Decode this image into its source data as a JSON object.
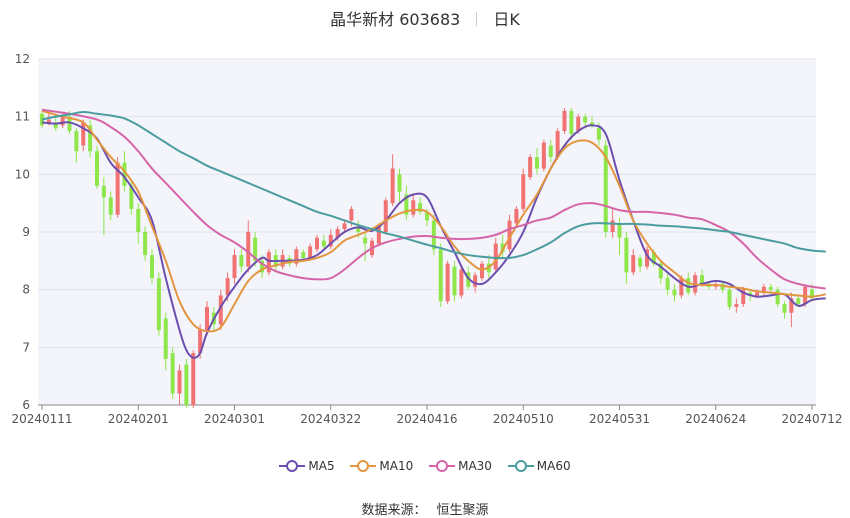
{
  "header": {
    "name": "晶华新材 603683",
    "period": "日K"
  },
  "source": {
    "label": "数据来源：",
    "value": "恒生聚源"
  },
  "colors": {
    "up": "#f07272",
    "down": "#8ee64a",
    "ma5": "#6c4eae",
    "ma10": "#e39640",
    "ma30": "#d664a8",
    "ma60": "#4b9c9e"
  },
  "chart_data": {
    "type": "candlestick",
    "title": "晶华新材 603683",
    "ylim": [
      6,
      12
    ],
    "yticks": [
      "6",
      "7",
      "8",
      "9",
      "10",
      "11",
      "12"
    ],
    "xticks": [
      {
        "label": "20240111",
        "index": 0
      },
      {
        "label": "20240201",
        "index": 14
      },
      {
        "label": "20240301",
        "index": 28
      },
      {
        "label": "20240322",
        "index": 42
      },
      {
        "label": "20240416",
        "index": 56
      },
      {
        "label": "20240510",
        "index": 70
      },
      {
        "label": "20240531",
        "index": 84
      },
      {
        "label": "20240624",
        "index": 98
      },
      {
        "label": "20240712",
        "index": 112
      }
    ],
    "legend": [
      {
        "key": "ma5",
        "label": "MA5"
      },
      {
        "key": "ma10",
        "label": "MA10"
      },
      {
        "key": "ma30",
        "label": "MA30"
      },
      {
        "key": "ma60",
        "label": "MA60"
      }
    ],
    "ohlc": [
      [
        11.05,
        10.85,
        11.1,
        10.8
      ],
      [
        10.9,
        10.95,
        11.05,
        10.85
      ],
      [
        10.9,
        10.8,
        11.0,
        10.75
      ],
      [
        10.85,
        11.0,
        11.05,
        10.8
      ],
      [
        11.0,
        10.75,
        11.1,
        10.7
      ],
      [
        10.75,
        10.4,
        10.8,
        10.2
      ],
      [
        10.5,
        10.9,
        10.95,
        10.4
      ],
      [
        10.85,
        10.4,
        10.95,
        10.3
      ],
      [
        10.4,
        9.8,
        10.5,
        9.75
      ],
      [
        9.8,
        9.6,
        9.95,
        8.95
      ],
      [
        9.6,
        9.3,
        9.7,
        9.2
      ],
      [
        9.3,
        10.2,
        10.3,
        9.25
      ],
      [
        10.2,
        9.8,
        10.4,
        9.7
      ],
      [
        9.8,
        9.4,
        9.9,
        9.3
      ],
      [
        9.4,
        9.0,
        9.5,
        8.8
      ],
      [
        9.0,
        8.6,
        9.1,
        8.5
      ],
      [
        8.6,
        8.2,
        8.7,
        8.1
      ],
      [
        8.2,
        7.3,
        8.3,
        7.2
      ],
      [
        7.5,
        6.8,
        7.6,
        6.6
      ],
      [
        6.9,
        6.2,
        7.0,
        6.1
      ],
      [
        6.2,
        6.6,
        6.7,
        6.0
      ],
      [
        6.7,
        6.0,
        6.8,
        5.95
      ],
      [
        6.0,
        6.9,
        6.95,
        5.95
      ],
      [
        6.9,
        7.3,
        7.4,
        6.8
      ],
      [
        7.3,
        7.7,
        7.8,
        7.2
      ],
      [
        7.6,
        7.4,
        7.7,
        7.3
      ],
      [
        7.4,
        7.9,
        8.0,
        7.3
      ],
      [
        7.9,
        8.2,
        8.3,
        7.8
      ],
      [
        8.2,
        8.6,
        8.7,
        8.1
      ],
      [
        8.6,
        8.4,
        8.7,
        8.3
      ],
      [
        8.4,
        9.0,
        9.2,
        8.3
      ],
      [
        8.9,
        8.5,
        9.0,
        8.4
      ],
      [
        8.5,
        8.3,
        8.6,
        8.2
      ],
      [
        8.3,
        8.65,
        8.7,
        8.25
      ],
      [
        8.6,
        8.4,
        8.7,
        8.3
      ],
      [
        8.4,
        8.6,
        8.7,
        8.35
      ],
      [
        8.55,
        8.45,
        8.6,
        8.4
      ],
      [
        8.45,
        8.7,
        8.75,
        8.4
      ],
      [
        8.65,
        8.55,
        8.7,
        8.5
      ],
      [
        8.55,
        8.75,
        8.8,
        8.5
      ],
      [
        8.7,
        8.9,
        8.95,
        8.65
      ],
      [
        8.85,
        8.75,
        8.95,
        8.7
      ],
      [
        8.75,
        8.95,
        9.05,
        8.7
      ],
      [
        8.9,
        9.05,
        9.1,
        8.85
      ],
      [
        9.05,
        9.15,
        9.2,
        9.0
      ],
      [
        9.2,
        9.4,
        9.45,
        9.1
      ],
      [
        9.1,
        9.0,
        9.2,
        8.9
      ],
      [
        8.9,
        8.8,
        9.0,
        8.5
      ],
      [
        8.6,
        8.85,
        8.9,
        8.55
      ],
      [
        8.8,
        9.1,
        9.15,
        8.75
      ],
      [
        9.0,
        9.55,
        9.6,
        8.95
      ],
      [
        9.5,
        10.1,
        10.35,
        9.45
      ],
      [
        10.0,
        9.7,
        10.1,
        9.5
      ],
      [
        9.65,
        9.3,
        9.8,
        9.2
      ],
      [
        9.3,
        9.55,
        9.65,
        9.25
      ],
      [
        9.5,
        9.35,
        9.6,
        9.3
      ],
      [
        9.35,
        9.2,
        9.4,
        9.1
      ],
      [
        9.2,
        8.7,
        9.3,
        8.6
      ],
      [
        8.7,
        7.8,
        8.8,
        7.7
      ],
      [
        7.8,
        8.45,
        8.5,
        7.75
      ],
      [
        8.4,
        7.9,
        8.5,
        7.8
      ],
      [
        7.9,
        8.35,
        8.4,
        7.85
      ],
      [
        8.3,
        8.05,
        8.4,
        8.0
      ],
      [
        8.05,
        8.25,
        8.3,
        7.95
      ],
      [
        8.2,
        8.45,
        8.5,
        8.15
      ],
      [
        8.45,
        8.3,
        8.6,
        8.2
      ],
      [
        8.35,
        8.8,
        8.9,
        8.3
      ],
      [
        8.8,
        8.65,
        8.95,
        8.55
      ],
      [
        8.7,
        9.2,
        9.3,
        8.65
      ],
      [
        9.15,
        9.4,
        9.45,
        9.1
      ],
      [
        9.4,
        10.0,
        10.1,
        9.35
      ],
      [
        9.95,
        10.3,
        10.35,
        9.9
      ],
      [
        10.3,
        10.1,
        10.45,
        10.0
      ],
      [
        10.1,
        10.55,
        10.6,
        10.05
      ],
      [
        10.5,
        10.3,
        10.6,
        10.2
      ],
      [
        10.3,
        10.75,
        10.8,
        10.25
      ],
      [
        10.75,
        11.1,
        11.15,
        10.7
      ],
      [
        11.1,
        10.7,
        11.15,
        10.6
      ],
      [
        10.75,
        11.0,
        11.05,
        10.7
      ],
      [
        11.0,
        10.9,
        11.05,
        10.8
      ],
      [
        10.9,
        10.85,
        11.0,
        10.8
      ],
      [
        10.8,
        10.6,
        10.9,
        10.5
      ],
      [
        10.5,
        9.0,
        10.6,
        8.9
      ],
      [
        9.0,
        9.2,
        9.4,
        8.9
      ],
      [
        9.15,
        8.9,
        9.25,
        8.6
      ],
      [
        8.9,
        8.3,
        9.0,
        8.1
      ],
      [
        8.3,
        8.6,
        8.7,
        8.25
      ],
      [
        8.55,
        8.4,
        8.6,
        8.3
      ],
      [
        8.4,
        8.7,
        8.75,
        8.35
      ],
      [
        8.65,
        8.45,
        8.7,
        8.4
      ],
      [
        8.45,
        8.2,
        8.5,
        8.1
      ],
      [
        8.2,
        8.0,
        8.3,
        7.9
      ],
      [
        8.0,
        7.9,
        8.1,
        7.8
      ],
      [
        7.9,
        8.2,
        8.25,
        7.85
      ],
      [
        8.2,
        7.95,
        8.3,
        7.9
      ],
      [
        7.95,
        8.25,
        8.3,
        7.9
      ],
      [
        8.25,
        8.1,
        8.35,
        8.05
      ],
      [
        8.1,
        8.05,
        8.15,
        8.0
      ],
      [
        8.05,
        8.1,
        8.15,
        8.0
      ],
      [
        8.1,
        8.0,
        8.15,
        7.95
      ],
      [
        8.0,
        7.7,
        8.05,
        7.65
      ],
      [
        7.7,
        7.75,
        7.85,
        7.6
      ],
      [
        7.75,
        8.0,
        8.05,
        7.7
      ],
      [
        7.95,
        7.9,
        8.0,
        7.8
      ],
      [
        7.9,
        7.95,
        8.0,
        7.85
      ],
      [
        7.95,
        8.05,
        8.1,
        7.9
      ],
      [
        8.05,
        8.0,
        8.1,
        7.9
      ],
      [
        8.0,
        7.75,
        8.05,
        7.7
      ],
      [
        7.75,
        7.6,
        7.8,
        7.5
      ],
      [
        7.6,
        7.85,
        7.95,
        7.35
      ],
      [
        7.85,
        7.75,
        7.9,
        7.7
      ],
      [
        7.75,
        8.05,
        8.1,
        7.7
      ],
      [
        8.0,
        7.85,
        8.1,
        7.8
      ]
    ],
    "ma5": [
      [
        0,
        10.9
      ],
      [
        2,
        10.88
      ],
      [
        4,
        10.9
      ],
      [
        6,
        10.8
      ],
      [
        8,
        10.62
      ],
      [
        10,
        10.2
      ],
      [
        12,
        9.95
      ],
      [
        14,
        9.6
      ],
      [
        16,
        9.2
      ],
      [
        18,
        8.2
      ],
      [
        20,
        7.3
      ],
      [
        21,
        6.95
      ],
      [
        22,
        6.82
      ],
      [
        23,
        6.9
      ],
      [
        24,
        7.25
      ],
      [
        26,
        7.7
      ],
      [
        28,
        8.05
      ],
      [
        30,
        8.35
      ],
      [
        32,
        8.55
      ],
      [
        33,
        8.5
      ],
      [
        35,
        8.5
      ],
      [
        38,
        8.52
      ],
      [
        40,
        8.6
      ],
      [
        42,
        8.8
      ],
      [
        44,
        9.0
      ],
      [
        46,
        9.08
      ],
      [
        48,
        9.02
      ],
      [
        50,
        9.2
      ],
      [
        52,
        9.5
      ],
      [
        54,
        9.65
      ],
      [
        56,
        9.6
      ],
      [
        58,
        9.1
      ],
      [
        60,
        8.65
      ],
      [
        62,
        8.2
      ],
      [
        64,
        8.1
      ],
      [
        66,
        8.3
      ],
      [
        68,
        8.6
      ],
      [
        70,
        9.0
      ],
      [
        72,
        9.6
      ],
      [
        74,
        10.1
      ],
      [
        76,
        10.5
      ],
      [
        78,
        10.75
      ],
      [
        80,
        10.85
      ],
      [
        82,
        10.7
      ],
      [
        84,
        9.9
      ],
      [
        86,
        9.2
      ],
      [
        88,
        8.6
      ],
      [
        90,
        8.4
      ],
      [
        92,
        8.2
      ],
      [
        94,
        8.05
      ],
      [
        96,
        8.1
      ],
      [
        98,
        8.15
      ],
      [
        100,
        8.1
      ],
      [
        102,
        7.95
      ],
      [
        104,
        7.88
      ],
      [
        106,
        7.9
      ],
      [
        108,
        7.92
      ],
      [
        110,
        7.72
      ],
      [
        112,
        7.82
      ],
      [
        114,
        7.85
      ]
    ],
    "ma10": [
      [
        0,
        11.1
      ],
      [
        3,
        11.0
      ],
      [
        6,
        10.9
      ],
      [
        8,
        10.6
      ],
      [
        10,
        10.3
      ],
      [
        12,
        10.05
      ],
      [
        14,
        9.7
      ],
      [
        16,
        9.1
      ],
      [
        18,
        8.5
      ],
      [
        20,
        7.8
      ],
      [
        22,
        7.4
      ],
      [
        24,
        7.28
      ],
      [
        26,
        7.35
      ],
      [
        28,
        7.75
      ],
      [
        30,
        8.15
      ],
      [
        32,
        8.35
      ],
      [
        34,
        8.42
      ],
      [
        36,
        8.48
      ],
      [
        38,
        8.5
      ],
      [
        40,
        8.55
      ],
      [
        42,
        8.65
      ],
      [
        44,
        8.85
      ],
      [
        46,
        8.95
      ],
      [
        48,
        9.05
      ],
      [
        50,
        9.2
      ],
      [
        52,
        9.32
      ],
      [
        54,
        9.38
      ],
      [
        56,
        9.35
      ],
      [
        58,
        9.1
      ],
      [
        60,
        8.75
      ],
      [
        62,
        8.5
      ],
      [
        64,
        8.35
      ],
      [
        66,
        8.5
      ],
      [
        68,
        8.9
      ],
      [
        70,
        9.3
      ],
      [
        72,
        9.65
      ],
      [
        74,
        10.1
      ],
      [
        76,
        10.45
      ],
      [
        78,
        10.58
      ],
      [
        80,
        10.55
      ],
      [
        82,
        10.3
      ],
      [
        84,
        9.8
      ],
      [
        86,
        9.2
      ],
      [
        88,
        8.8
      ],
      [
        90,
        8.5
      ],
      [
        92,
        8.3
      ],
      [
        94,
        8.12
      ],
      [
        96,
        8.08
      ],
      [
        98,
        8.08
      ],
      [
        100,
        8.05
      ],
      [
        102,
        8.02
      ],
      [
        104,
        7.97
      ],
      [
        106,
        7.95
      ],
      [
        108,
        7.92
      ],
      [
        110,
        7.9
      ],
      [
        112,
        7.88
      ],
      [
        114,
        7.92
      ]
    ],
    "ma30": [
      [
        0,
        11.12
      ],
      [
        4,
        11.05
      ],
      [
        8,
        10.95
      ],
      [
        10,
        10.82
      ],
      [
        12,
        10.65
      ],
      [
        14,
        10.4
      ],
      [
        16,
        10.1
      ],
      [
        18,
        9.85
      ],
      [
        20,
        9.6
      ],
      [
        22,
        9.35
      ],
      [
        24,
        9.12
      ],
      [
        26,
        8.95
      ],
      [
        28,
        8.82
      ],
      [
        30,
        8.65
      ],
      [
        32,
        8.45
      ],
      [
        34,
        8.32
      ],
      [
        36,
        8.25
      ],
      [
        38,
        8.2
      ],
      [
        40,
        8.18
      ],
      [
        42,
        8.2
      ],
      [
        44,
        8.35
      ],
      [
        46,
        8.55
      ],
      [
        48,
        8.72
      ],
      [
        50,
        8.82
      ],
      [
        52,
        8.88
      ],
      [
        54,
        8.92
      ],
      [
        56,
        8.93
      ],
      [
        58,
        8.9
      ],
      [
        60,
        8.88
      ],
      [
        62,
        8.88
      ],
      [
        64,
        8.9
      ],
      [
        66,
        8.95
      ],
      [
        68,
        9.05
      ],
      [
        70,
        9.12
      ],
      [
        72,
        9.2
      ],
      [
        74,
        9.25
      ],
      [
        76,
        9.38
      ],
      [
        78,
        9.48
      ],
      [
        80,
        9.5
      ],
      [
        82,
        9.45
      ],
      [
        84,
        9.38
      ],
      [
        86,
        9.35
      ],
      [
        88,
        9.35
      ],
      [
        90,
        9.33
      ],
      [
        92,
        9.3
      ],
      [
        94,
        9.25
      ],
      [
        96,
        9.22
      ],
      [
        98,
        9.12
      ],
      [
        100,
        9.0
      ],
      [
        102,
        8.8
      ],
      [
        104,
        8.55
      ],
      [
        106,
        8.35
      ],
      [
        108,
        8.18
      ],
      [
        110,
        8.1
      ],
      [
        112,
        8.05
      ],
      [
        114,
        8.02
      ]
    ],
    "ma60": [
      [
        0,
        10.95
      ],
      [
        2,
        11.0
      ],
      [
        4,
        11.04
      ],
      [
        6,
        11.08
      ],
      [
        8,
        11.05
      ],
      [
        10,
        11.02
      ],
      [
        12,
        10.97
      ],
      [
        14,
        10.85
      ],
      [
        16,
        10.7
      ],
      [
        18,
        10.55
      ],
      [
        20,
        10.4
      ],
      [
        22,
        10.28
      ],
      [
        24,
        10.15
      ],
      [
        26,
        10.05
      ],
      [
        28,
        9.95
      ],
      [
        30,
        9.85
      ],
      [
        32,
        9.75
      ],
      [
        34,
        9.65
      ],
      [
        36,
        9.55
      ],
      [
        38,
        9.45
      ],
      [
        40,
        9.35
      ],
      [
        42,
        9.28
      ],
      [
        44,
        9.2
      ],
      [
        46,
        9.12
      ],
      [
        48,
        9.05
      ],
      [
        50,
        8.98
      ],
      [
        52,
        8.92
      ],
      [
        54,
        8.85
      ],
      [
        56,
        8.78
      ],
      [
        58,
        8.72
      ],
      [
        60,
        8.65
      ],
      [
        62,
        8.6
      ],
      [
        64,
        8.57
      ],
      [
        66,
        8.55
      ],
      [
        68,
        8.55
      ],
      [
        70,
        8.6
      ],
      [
        72,
        8.7
      ],
      [
        74,
        8.82
      ],
      [
        76,
        8.98
      ],
      [
        78,
        9.1
      ],
      [
        80,
        9.15
      ],
      [
        82,
        9.15
      ],
      [
        84,
        9.14
      ],
      [
        86,
        9.14
      ],
      [
        88,
        9.13
      ],
      [
        90,
        9.11
      ],
      [
        92,
        9.1
      ],
      [
        94,
        9.08
      ],
      [
        96,
        9.06
      ],
      [
        98,
        9.03
      ],
      [
        100,
        9.0
      ],
      [
        102,
        8.95
      ],
      [
        104,
        8.9
      ],
      [
        106,
        8.85
      ],
      [
        108,
        8.8
      ],
      [
        110,
        8.72
      ],
      [
        112,
        8.68
      ],
      [
        114,
        8.66
      ]
    ]
  }
}
